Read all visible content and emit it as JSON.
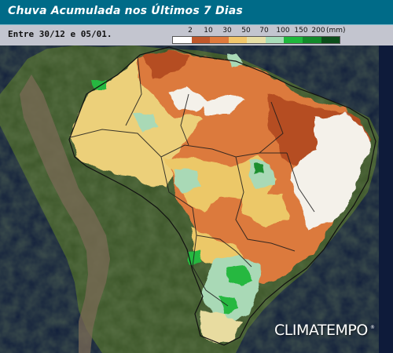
{
  "header": {
    "title": "Chuva Acumulada nos Últimos 7 Dias",
    "period": "Entre 30/12 e 05/01."
  },
  "legend": {
    "unit": "(mm)",
    "ticks": [
      "2",
      "10",
      "30",
      "50",
      "70",
      "100",
      "150",
      "200"
    ],
    "colors": [
      "#ffffff",
      "#c0572a",
      "#e07a3c",
      "#f2c76b",
      "#e7dfa6",
      "#a8dcb8",
      "#1eb83c",
      "#128a2a",
      "#0b4d1a"
    ]
  },
  "branding": {
    "logo": "CLIMATEMPO",
    "trademark": "®"
  },
  "map": {
    "ocean_color": "#0e1b3a",
    "land_color": "#3f5a2c",
    "andes_color": "#7a6a55"
  }
}
